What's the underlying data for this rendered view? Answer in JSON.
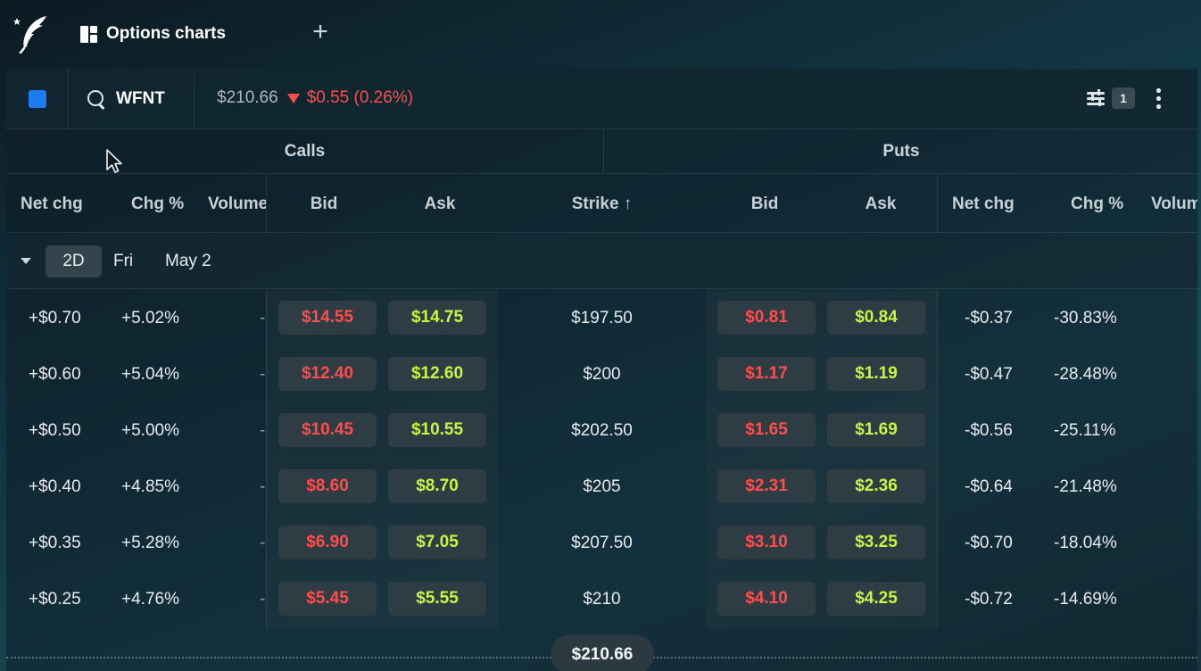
{
  "app": {
    "tab_label": "Options charts"
  },
  "toolbar": {
    "symbol": "WFNT",
    "price": "$210.66",
    "change": "$0.55 (0.26%)",
    "filter_count": "1",
    "accent_color": "#1e7bf2"
  },
  "groups": {
    "calls": "Calls",
    "puts": "Puts"
  },
  "columns": {
    "calls_net_chg": "Net chg",
    "calls_chg_pct": "Chg %",
    "calls_volume": "Volume",
    "calls_bid": "Bid",
    "calls_ask": "Ask",
    "strike": "Strike ↑",
    "puts_bid": "Bid",
    "puts_ask": "Ask",
    "puts_net_chg": "Net chg",
    "puts_chg_pct": "Chg %",
    "puts_volume": "Volume"
  },
  "expiration": {
    "dte": "2D",
    "day": "Fri",
    "date": "May 2"
  },
  "rows": [
    {
      "call_net_chg": "+$0.70",
      "call_chg_pct": "+5.02%",
      "call_volume": "-",
      "call_bid": "$14.55",
      "call_ask": "$14.75",
      "strike": "$197.50",
      "put_bid": "$0.81",
      "put_ask": "$0.84",
      "put_net_chg": "-$0.37",
      "put_chg_pct": "-30.83%"
    },
    {
      "call_net_chg": "+$0.60",
      "call_chg_pct": "+5.04%",
      "call_volume": "-",
      "call_bid": "$12.40",
      "call_ask": "$12.60",
      "strike": "$200",
      "put_bid": "$1.17",
      "put_ask": "$1.19",
      "put_net_chg": "-$0.47",
      "put_chg_pct": "-28.48%"
    },
    {
      "call_net_chg": "+$0.50",
      "call_chg_pct": "+5.00%",
      "call_volume": "-",
      "call_bid": "$10.45",
      "call_ask": "$10.55",
      "strike": "$202.50",
      "put_bid": "$1.65",
      "put_ask": "$1.69",
      "put_net_chg": "-$0.56",
      "put_chg_pct": "-25.11%"
    },
    {
      "call_net_chg": "+$0.40",
      "call_chg_pct": "+4.85%",
      "call_volume": "-",
      "call_bid": "$8.60",
      "call_ask": "$8.70",
      "strike": "$205",
      "put_bid": "$2.31",
      "put_ask": "$2.36",
      "put_net_chg": "-$0.64",
      "put_chg_pct": "-21.48%"
    },
    {
      "call_net_chg": "+$0.35",
      "call_chg_pct": "+5.28%",
      "call_volume": "-",
      "call_bid": "$6.90",
      "call_ask": "$7.05",
      "strike": "$207.50",
      "put_bid": "$3.10",
      "put_ask": "$3.25",
      "put_net_chg": "-$0.70",
      "put_chg_pct": "-18.04%"
    },
    {
      "call_net_chg": "+$0.25",
      "call_chg_pct": "+4.76%",
      "call_volume": "-",
      "call_bid": "$5.45",
      "call_ask": "$5.55",
      "strike": "$210",
      "put_bid": "$4.10",
      "put_ask": "$4.25",
      "put_net_chg": "-$0.72",
      "put_chg_pct": "-14.69%"
    }
  ],
  "current_price_marker": "$210.66",
  "colors": {
    "bid": "#ff4d4d",
    "ask": "#c8f542",
    "negative": "#ff4d4d"
  }
}
